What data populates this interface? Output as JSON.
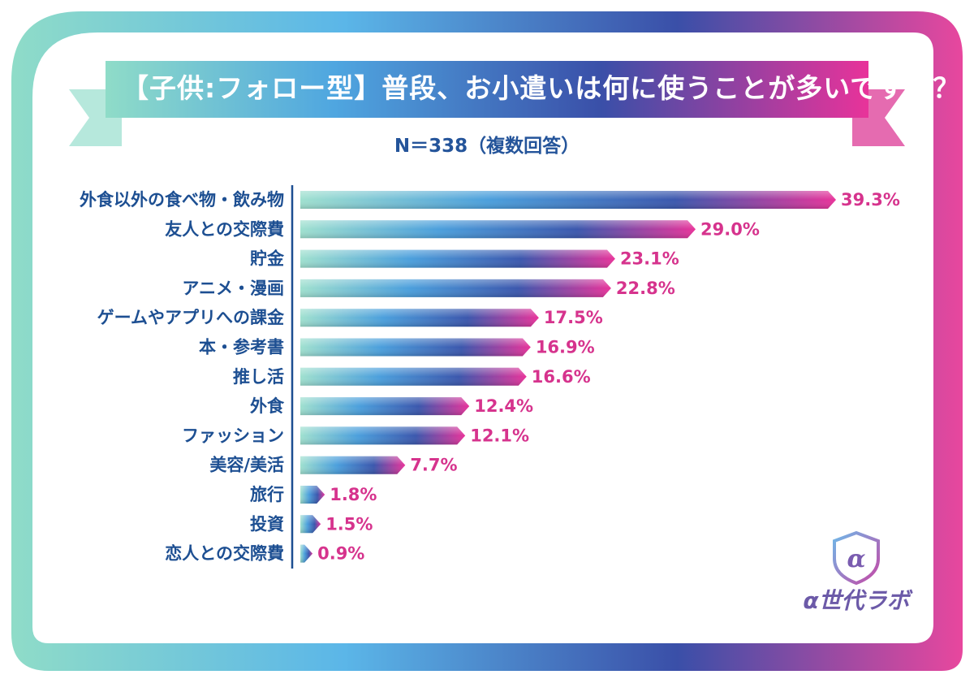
{
  "title": "【子供:フォロー型】普段、お小遣いは何に使うことが多いですか？",
  "subtitle": "N＝338（複数回答）",
  "brand": "α世代ラボ",
  "colors": {
    "left": "#8fdcc8",
    "mid": "#2e6fc4",
    "deep": "#3a4fa8",
    "right": "#e8339a",
    "category_text": "#1d4f92",
    "value_text": "#d6338d"
  },
  "chart_data": {
    "type": "bar",
    "orientation": "horizontal",
    "categories": [
      "外食以外の食べ物・飲み物",
      "友人との交際費",
      "貯金",
      "アニメ・漫画",
      "ゲームやアプリへの課金",
      "本・参考書",
      "推し活",
      "外食",
      "ファッション",
      "美容/美活",
      "旅行",
      "投資",
      "恋人との交際費"
    ],
    "values": [
      39.3,
      29.0,
      23.1,
      22.8,
      17.5,
      16.9,
      16.6,
      12.4,
      12.1,
      7.7,
      1.8,
      1.5,
      0.9
    ],
    "value_labels": [
      "39.3%",
      "29.0%",
      "23.1%",
      "22.8%",
      "17.5%",
      "16.9%",
      "16.6%",
      "12.4%",
      "12.1%",
      "7.7%",
      "1.8%",
      "1.5%",
      "0.9%"
    ],
    "xlim": [
      0,
      40
    ],
    "grid": false
  }
}
